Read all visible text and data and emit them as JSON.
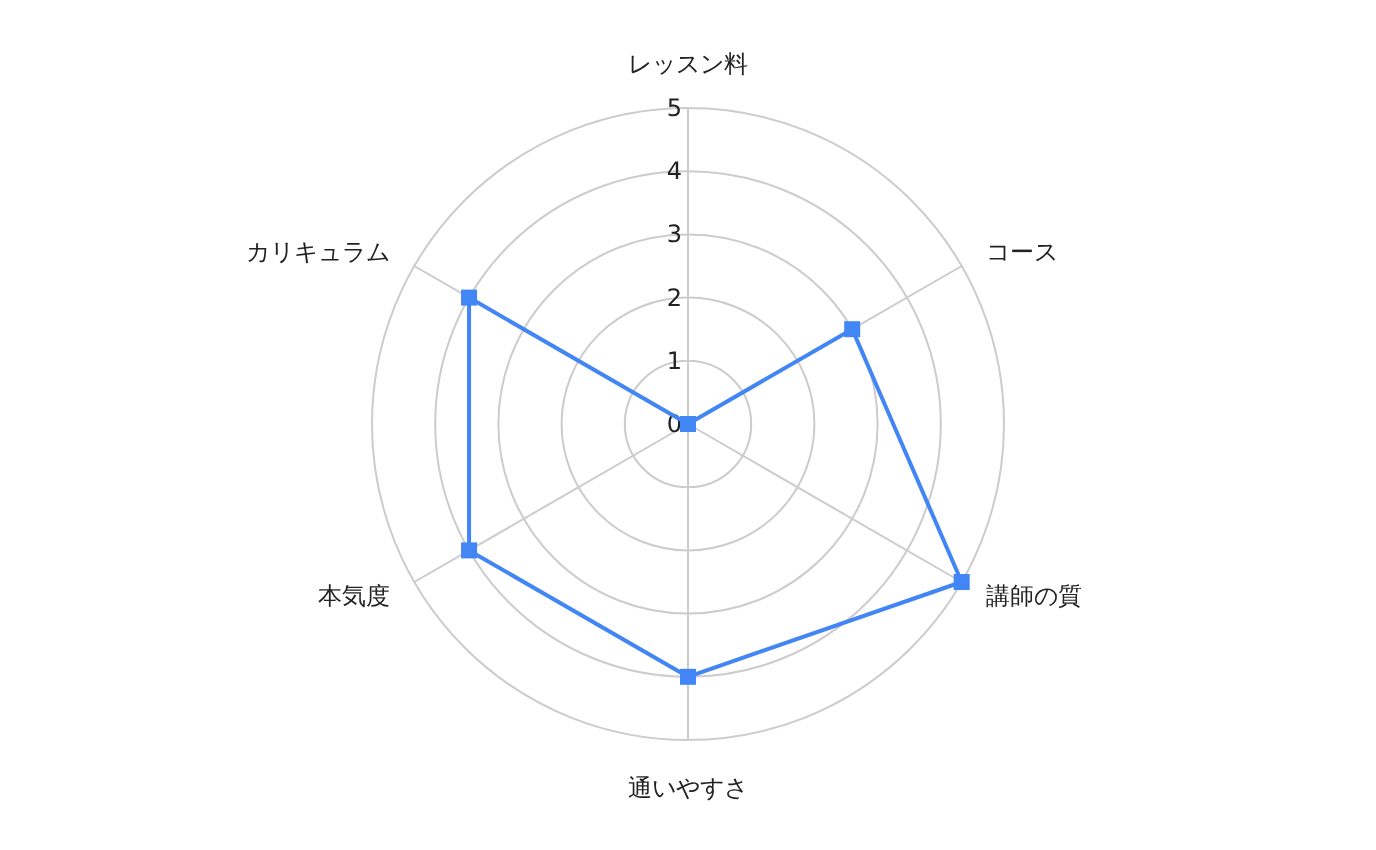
{
  "chart_data": {
    "type": "radar",
    "categories": [
      "レッスン料",
      "コース",
      "講師の質",
      "通いやすさ",
      "本気度",
      "カリキュラム"
    ],
    "series": [
      {
        "color": "#4285f4",
        "values": [
          0,
          3,
          5,
          4,
          4,
          4
        ]
      }
    ],
    "ylim": [
      0,
      5
    ],
    "yticks": [
      0,
      1,
      2,
      3,
      4,
      5
    ],
    "grid": true,
    "marker": "square",
    "line_style": "solid"
  }
}
